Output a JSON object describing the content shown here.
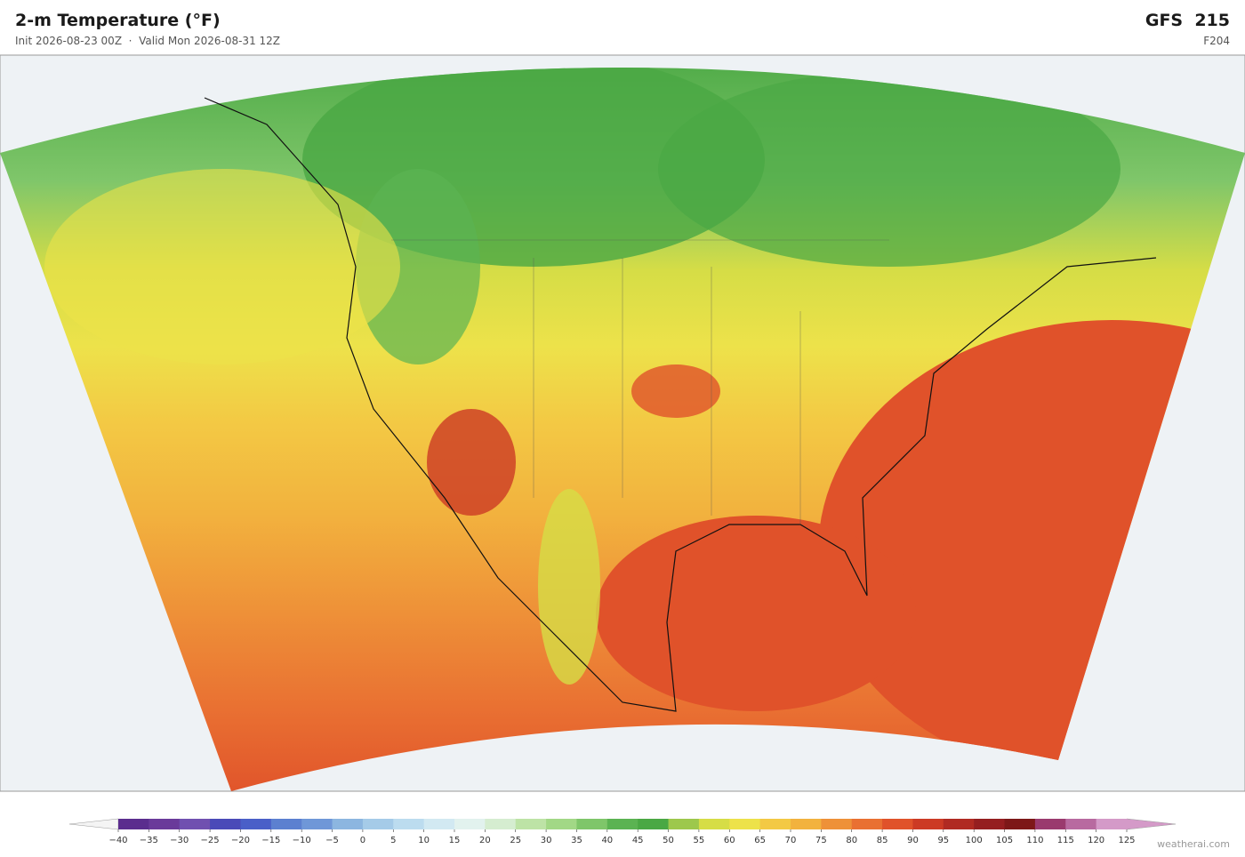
{
  "header": {
    "title": "2-m Temperature  (°F)",
    "subtitle": "Init 2026-08-23 00Z  ·  Valid Mon 2026-08-31 12Z",
    "model": "GFS  215",
    "forecast_hour": "F204"
  },
  "colorbar": {
    "ticks": [
      "−40",
      "−35",
      "−30",
      "−25",
      "−20",
      "−15",
      "−10",
      "−5",
      "0",
      "5",
      "10",
      "15",
      "20",
      "25",
      "30",
      "35",
      "40",
      "45",
      "50",
      "55",
      "60",
      "65",
      "70",
      "75",
      "80",
      "85",
      "90",
      "95",
      "100",
      "105",
      "110",
      "115",
      "120",
      "125"
    ],
    "colors": [
      "#5b2d8e",
      "#6a3a9a",
      "#7050b0",
      "#4a4ab8",
      "#4a5fc8",
      "#5c80d0",
      "#6f97d8",
      "#8cb6e0",
      "#a5cbe8",
      "#bcdcef",
      "#d2e9f2",
      "#e2f2ee",
      "#d5edd0",
      "#bde3a6",
      "#a2d886",
      "#7fc66a",
      "#5bb352",
      "#4aa844",
      "#9dc84c",
      "#d6dd46",
      "#ede24a",
      "#f3c944",
      "#f2b23e",
      "#ee9138",
      "#e97032",
      "#e0522a",
      "#cc3a24",
      "#b02a22",
      "#951e20",
      "#7d1818",
      "#9a3a6e",
      "#b86aa0",
      "#d49ac8"
    ],
    "under_color": "#f4f4f4",
    "over_color": "#d49ac8"
  },
  "footer": {
    "credit": "weatherai.com"
  }
}
